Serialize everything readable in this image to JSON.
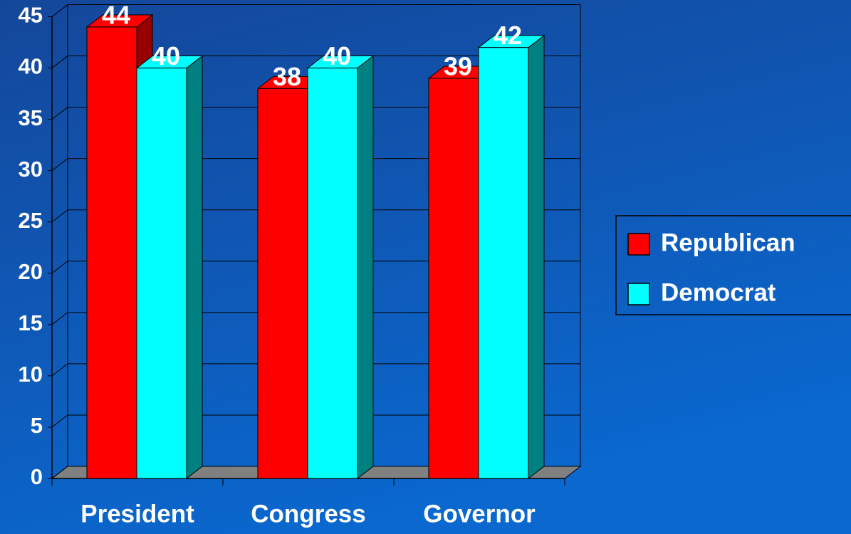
{
  "chart_data": {
    "type": "bar3d",
    "categories": [
      "President",
      "Congress",
      "Governor"
    ],
    "series": [
      {
        "name": "Republican",
        "color": "#ff0000",
        "side_color": "#990000",
        "values": [
          44,
          38,
          39
        ]
      },
      {
        "name": "Democrat",
        "color": "#00ffff",
        "side_color": "#008080",
        "values": [
          40,
          40,
          42
        ]
      }
    ],
    "ylim": [
      0,
      45
    ],
    "yticks": [
      0,
      5,
      10,
      15,
      20,
      25,
      30,
      35,
      40,
      45
    ],
    "grid": true,
    "legend": "right"
  }
}
